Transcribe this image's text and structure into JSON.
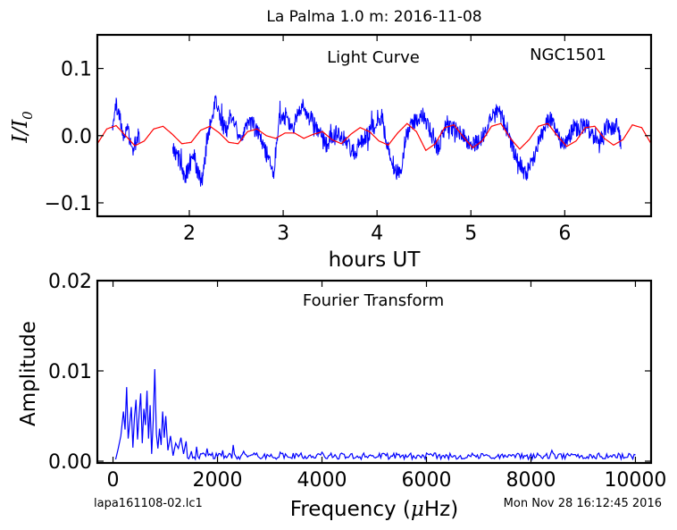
{
  "figure": {
    "title": "La Palma 1.0 m:  2016-11-08",
    "footer_left": "lapa161108-02.lc1",
    "footer_right": "Mon Nov 28 16:12:45 2016"
  },
  "chart_data": [
    {
      "type": "line",
      "name": "light-curve",
      "title": "",
      "annotations": [
        "Light Curve",
        "NGC1501"
      ],
      "xlabel": "hours UT",
      "ylabel": "I/I0",
      "ylabel_main": "I/I",
      "ylabel_sub": "0",
      "xlim": [
        1.02,
        6.92
      ],
      "ylim": [
        -0.12,
        0.15
      ],
      "xticks": [
        2,
        3,
        4,
        5,
        6
      ],
      "xtick_labels": [
        "2",
        "3",
        "4",
        "5",
        "6"
      ],
      "yticks": [
        -0.1,
        0.0,
        0.1
      ],
      "ytick_labels": [
        "−0.1",
        "0.0",
        "0.1"
      ],
      "grid": false,
      "series": [
        {
          "color": "#0000ff",
          "gaps": [
            [
              1.47,
              1.82
            ],
            [
              6.6,
              6.92
            ]
          ],
          "x": [
            1.18,
            1.2,
            1.22,
            1.25,
            1.28,
            1.3,
            1.33,
            1.36,
            1.4,
            1.45,
            1.84,
            1.88,
            1.92,
            1.96,
            2.0,
            2.05,
            2.1,
            2.13,
            2.16,
            2.2,
            2.24,
            2.28,
            2.32,
            2.36,
            2.4,
            2.45,
            2.5,
            2.55,
            2.6,
            2.65,
            2.7,
            2.75,
            2.8,
            2.85,
            2.9,
            2.95,
            3.0,
            3.05,
            3.1,
            3.15,
            3.2,
            3.25,
            3.3,
            3.35,
            3.4,
            3.45,
            3.5,
            3.55,
            3.6,
            3.65,
            3.7,
            3.75,
            3.8,
            3.85,
            3.9,
            3.95,
            4.0,
            4.05,
            4.1,
            4.15,
            4.2,
            4.25,
            4.3,
            4.35,
            4.4,
            4.45,
            4.5,
            4.55,
            4.6,
            4.65,
            4.7,
            4.75,
            4.8,
            4.85,
            4.9,
            4.95,
            5.0,
            5.05,
            5.1,
            5.15,
            5.2,
            5.25,
            5.3,
            5.35,
            5.4,
            5.45,
            5.5,
            5.55,
            5.6,
            5.65,
            5.7,
            5.75,
            5.8,
            5.85,
            5.9,
            5.95,
            6.0,
            6.05,
            6.1,
            6.15,
            6.2,
            6.25,
            6.3,
            6.35,
            6.4,
            6.45,
            6.5,
            6.55,
            6.6
          ],
          "y": [
            0.01,
            0.03,
            0.045,
            0.035,
            0.01,
            -0.01,
            0.02,
            -0.005,
            -0.02,
            0.0,
            -0.02,
            -0.035,
            -0.05,
            -0.06,
            -0.045,
            -0.03,
            -0.06,
            -0.07,
            -0.04,
            0.0,
            0.02,
            0.055,
            0.035,
            0.015,
            0.01,
            0.03,
            0.01,
            -0.01,
            0.015,
            0.025,
            0.01,
            0.005,
            -0.02,
            -0.035,
            -0.055,
            0.02,
            0.03,
            0.025,
            0.01,
            0.03,
            0.045,
            0.03,
            0.025,
            0.01,
            0.0,
            -0.015,
            -0.005,
            0.005,
            0.0,
            -0.005,
            -0.015,
            -0.025,
            -0.02,
            -0.005,
            0.0,
            0.01,
            0.025,
            0.03,
            -0.01,
            -0.03,
            -0.05,
            -0.06,
            -0.005,
            0.01,
            0.02,
            0.03,
            0.03,
            0.01,
            -0.01,
            -0.02,
            0.005,
            0.015,
            0.01,
            0.01,
            0.005,
            -0.005,
            -0.015,
            -0.01,
            -0.005,
            0.005,
            0.02,
            0.03,
            0.04,
            0.02,
            0.005,
            -0.02,
            -0.035,
            -0.045,
            -0.055,
            -0.04,
            -0.02,
            0.0,
            0.02,
            0.025,
            0.01,
            -0.01,
            -0.015,
            0.0,
            0.01,
            0.01,
            0.015,
            0.01,
            0.0,
            -0.01,
            0.0,
            0.015,
            0.01,
            0.015,
            -0.01
          ]
        },
        {
          "color": "#ff0000",
          "x": [
            1.02,
            1.12,
            1.22,
            1.32,
            1.42,
            1.52,
            1.62,
            1.72,
            1.82,
            1.92,
            2.02,
            2.12,
            2.22,
            2.32,
            2.42,
            2.52,
            2.62,
            2.72,
            2.82,
            2.92,
            3.02,
            3.12,
            3.22,
            3.32,
            3.42,
            3.52,
            3.62,
            3.72,
            3.82,
            3.92,
            4.02,
            4.12,
            4.22,
            4.32,
            4.42,
            4.52,
            4.62,
            4.72,
            4.82,
            4.92,
            5.02,
            5.12,
            5.22,
            5.32,
            5.42,
            5.52,
            5.62,
            5.72,
            5.82,
            5.92,
            6.02,
            6.12,
            6.22,
            6.32,
            6.42,
            6.52,
            6.62,
            6.72,
            6.82,
            6.92
          ],
          "y": [
            -0.012,
            0.01,
            0.015,
            0.0,
            -0.015,
            -0.008,
            0.01,
            0.014,
            0.002,
            -0.012,
            -0.01,
            0.008,
            0.014,
            0.004,
            -0.01,
            -0.012,
            0.006,
            0.01,
            0.0,
            -0.004,
            0.004,
            0.004,
            -0.004,
            0.002,
            0.006,
            -0.006,
            -0.012,
            0.002,
            0.012,
            0.006,
            -0.008,
            -0.014,
            0.004,
            0.018,
            0.006,
            -0.022,
            -0.012,
            0.012,
            0.016,
            -0.002,
            -0.018,
            -0.008,
            0.014,
            0.018,
            -0.004,
            -0.02,
            -0.006,
            0.014,
            0.018,
            0.0,
            -0.016,
            -0.008,
            0.012,
            0.014,
            -0.004,
            -0.014,
            -0.006,
            0.016,
            0.012,
            -0.012
          ]
        }
      ]
    },
    {
      "type": "line",
      "name": "fourier-transform",
      "title": "",
      "annotations": [
        "Fourier Transform"
      ],
      "xlabel": "Frequency (μHz)",
      "xlabel_pre": "Frequency (",
      "xlabel_mu": "μ",
      "xlabel_post": "Hz)",
      "ylabel": "Amplitude",
      "xlim": [
        -300,
        10300
      ],
      "ylim": [
        -0.0002,
        0.02
      ],
      "xticks": [
        0,
        2000,
        4000,
        6000,
        8000,
        10000
      ],
      "xtick_labels": [
        "0",
        "2000",
        "4000",
        "6000",
        "8000",
        "10000"
      ],
      "yticks": [
        0.0,
        0.01,
        0.02
      ],
      "ytick_labels": [
        "0.00",
        "0.01",
        "0.02"
      ],
      "grid": false,
      "series": [
        {
          "color": "#0000ff",
          "x": [
            50,
            100,
            150,
            200,
            230,
            260,
            290,
            320,
            350,
            380,
            410,
            440,
            470,
            500,
            530,
            560,
            590,
            620,
            650,
            680,
            710,
            740,
            770,
            800,
            830,
            860,
            890,
            920,
            950,
            980,
            1010,
            1050,
            1100,
            1150,
            1200,
            1250,
            1300,
            1350,
            1400,
            1500,
            1600,
            1700,
            1800,
            1900,
            2000,
            2100,
            2200,
            2300,
            2400,
            2500,
            2600,
            2700,
            2800,
            2900,
            3000,
            3200,
            3400,
            3600,
            3800,
            4000,
            4200,
            4400,
            4600,
            4800,
            5000,
            5200,
            5400,
            5600,
            5800,
            6000,
            6200,
            6400,
            6600,
            6800,
            7000,
            7200,
            7400,
            7600,
            7800,
            8000,
            8200,
            8400,
            8600,
            8800,
            9000,
            9200,
            9400,
            9600,
            9800,
            10000
          ],
          "y": [
            0.0002,
            0.0014,
            0.0028,
            0.0055,
            0.0035,
            0.0082,
            0.0025,
            0.0042,
            0.006,
            0.0015,
            0.0048,
            0.0068,
            0.0024,
            0.0052,
            0.0075,
            0.002,
            0.0058,
            0.004,
            0.0078,
            0.0025,
            0.0062,
            0.0008,
            0.0046,
            0.0102,
            0.003,
            0.0014,
            0.0036,
            0.0018,
            0.0055,
            0.0026,
            0.005,
            0.0012,
            0.0028,
            0.0006,
            0.002,
            0.0014,
            0.0026,
            0.0008,
            0.0022,
            0.0011,
            0.0016,
            0.0008,
            0.0014,
            0.0009,
            0.0005,
            0.0012,
            0.0006,
            0.0018,
            0.0005,
            0.0011,
            0.0006,
            0.0009,
            0.0004,
            0.0008,
            0.0005,
            0.001,
            0.0004,
            0.0009,
            0.0004,
            0.001,
            0.0004,
            0.0008,
            0.0003,
            0.0009,
            0.0004,
            0.0008,
            0.0003,
            0.0007,
            0.0003,
            0.0009,
            0.0003,
            0.0006,
            0.0003,
            0.0007,
            0.0003,
            0.0006,
            0.0003,
            0.0007,
            0.0003,
            0.0008,
            0.0004,
            0.0012,
            0.0003,
            0.0007,
            0.0003,
            0.0006,
            0.0003,
            0.0007,
            0.0004,
            0.0007
          ]
        }
      ]
    }
  ]
}
